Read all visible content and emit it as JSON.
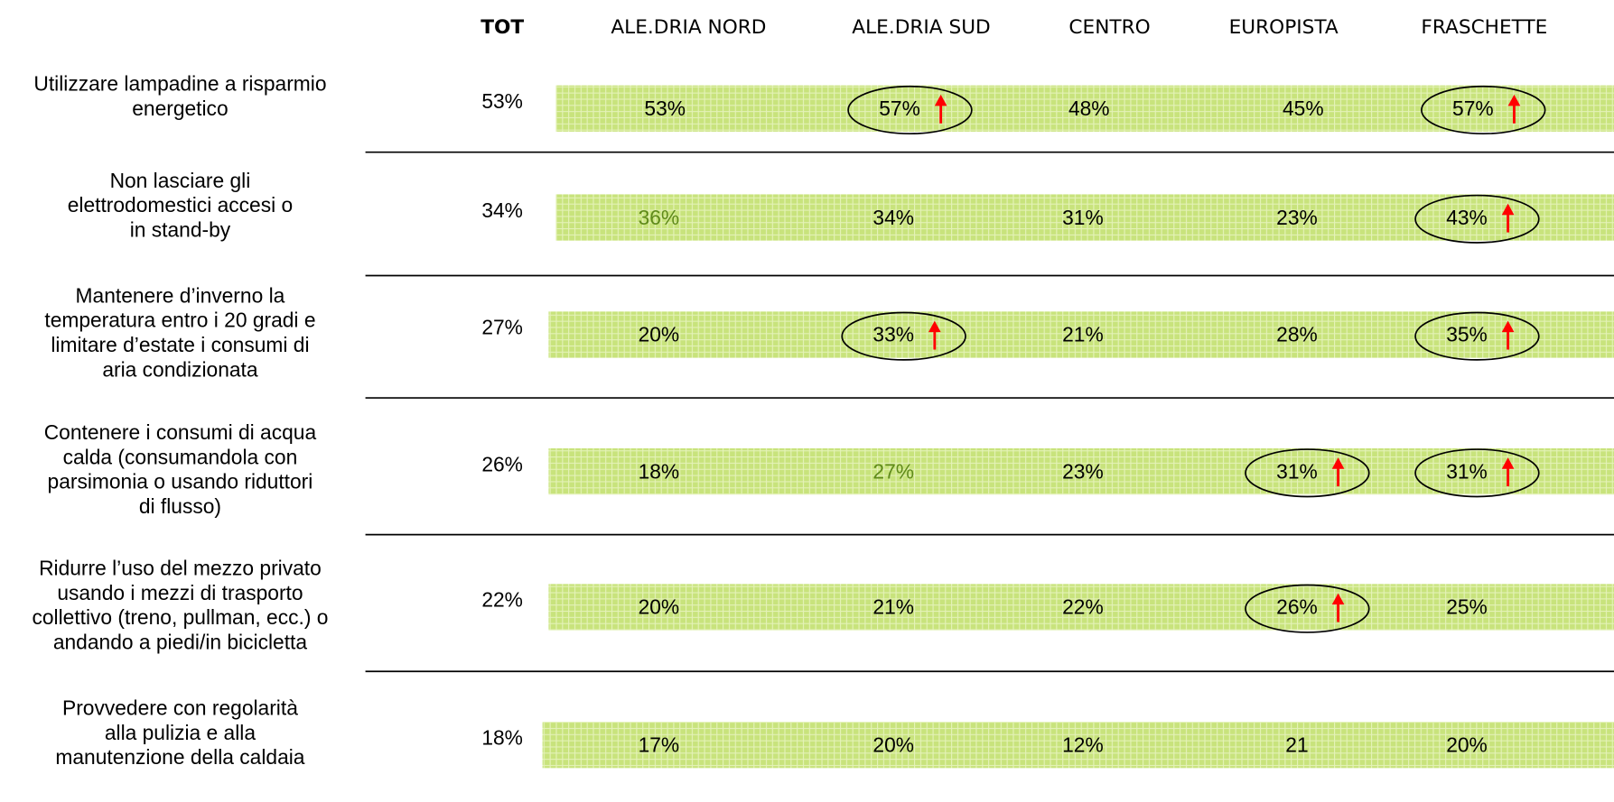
{
  "table": {
    "header": {
      "corner": "TOT",
      "columns": [
        "ALE.DRIA NORD",
        "ALE.DRIA SUD",
        "CENTRO",
        "EUROPISTA",
        "FRASCHETTE"
      ]
    },
    "rows": [
      {
        "label": [
          "Utilizzare lampadine a risparmio",
          "energetico"
        ],
        "tot": "53%",
        "cells": [
          {
            "text": "53%"
          },
          {
            "text": "57%",
            "circled": true
          },
          {
            "text": "48%"
          },
          {
            "text": "45%"
          },
          {
            "text": "57%",
            "circled": true
          }
        ]
      },
      {
        "label": [
          "Non lasciare gli",
          "elettrodomestici accesi o",
          "in stand-by"
        ],
        "tot": "34%",
        "cells": [
          {
            "text": "36%",
            "color": "#5f8a1a"
          },
          {
            "text": "34%"
          },
          {
            "text": "31%"
          },
          {
            "text": "23%"
          },
          {
            "text": "43%",
            "circled": true
          }
        ]
      },
      {
        "label": [
          "Mantenere d’inverno la",
          "temperatura entro i 20 gradi e",
          "limitare d’estate i consumi di",
          "aria condizionata"
        ],
        "tot": "27%",
        "cells": [
          {
            "text": "20%"
          },
          {
            "text": "33%",
            "circled": true
          },
          {
            "text": "21%"
          },
          {
            "text": "28%"
          },
          {
            "text": "35%",
            "circled": true
          }
        ]
      },
      {
        "label": [
          "Contenere i consumi di acqua",
          "calda (consumandola con",
          "parsimonia o usando riduttori",
          "di flusso)"
        ],
        "tot": "26%",
        "cells": [
          {
            "text": "18%"
          },
          {
            "text": "27%",
            "color": "#5f8a1a"
          },
          {
            "text": "23%"
          },
          {
            "text": "31%",
            "circled": true
          },
          {
            "text": "31%",
            "circled": true
          }
        ]
      },
      {
        "label": [
          "Ridurre l’uso del mezzo privato",
          "usando i mezzi di trasporto",
          "collettivo (treno, pullman, ecc.) o",
          "andando a piedi/in bicicletta"
        ],
        "tot": "22%",
        "cells": [
          {
            "text": "20%"
          },
          {
            "text": "21%"
          },
          {
            "text": "22%"
          },
          {
            "text": "26%",
            "circled": true
          },
          {
            "text": "25%"
          }
        ]
      },
      {
        "label": [
          "Provvedere con regolarità",
          "alla pulizia e alla",
          "manutenzione della caldaia"
        ],
        "tot": "18%",
        "cells": [
          {
            "text": "17%"
          },
          {
            "text": "20%"
          },
          {
            "text": "12%"
          },
          {
            "text": "21"
          },
          {
            "text": "20%"
          }
        ]
      }
    ]
  }
}
